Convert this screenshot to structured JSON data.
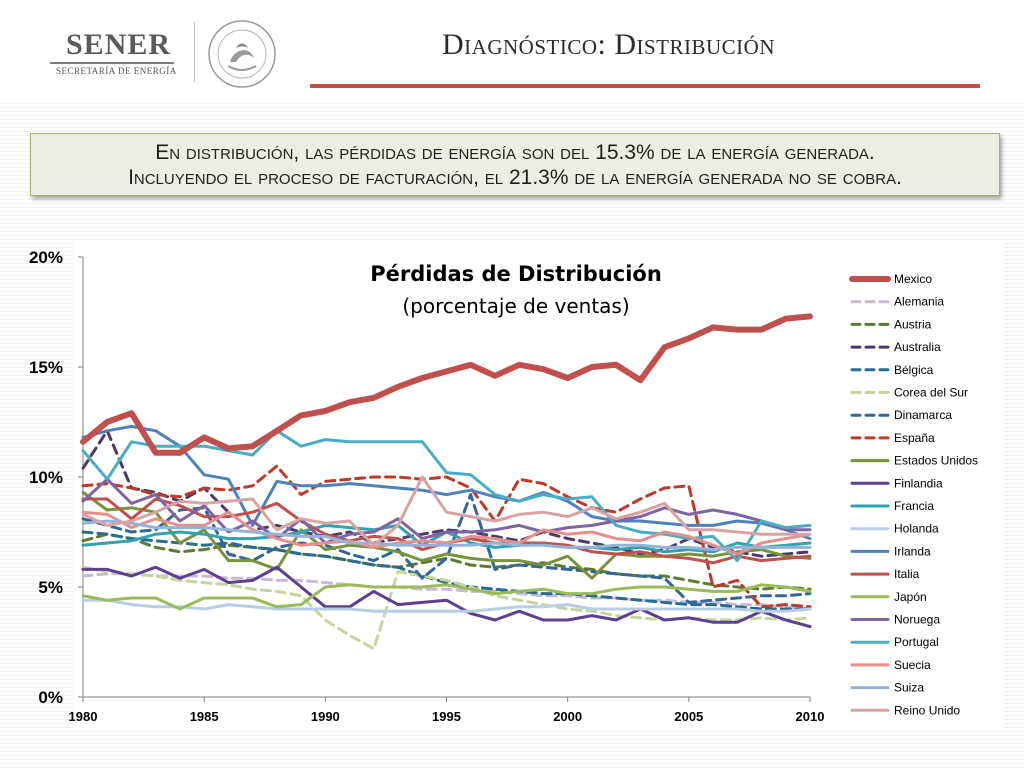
{
  "header": {
    "logo_name": "SENER",
    "logo_sub": "SECRETARÍA DE ENERGÍA",
    "title": "Diagnóstico: Distribución"
  },
  "callout": {
    "line1": "En distribución, las pérdidas de energía son del 15.3% de la energía generada.",
    "line2": "Incluyendo el proceso de facturación, el 21.3% de la energía generada no se cobra."
  },
  "colors": {
    "accent_rule": "#c94848",
    "callout_border": "#9fb66f",
    "callout_bg": "#eeede3"
  },
  "chart_data": {
    "type": "line",
    "title": "Pérdidas de Distribución",
    "subtitle": "(porcentaje de ventas)",
    "xlabel": "",
    "ylabel": "",
    "xlim": [
      1980,
      2010
    ],
    "ylim": [
      0,
      20
    ],
    "yticks": [
      "0%",
      "5%",
      "10%",
      "15%",
      "20%"
    ],
    "xticks": [
      "1980",
      "1985",
      "1990",
      "1995",
      "2000",
      "2005",
      "2010"
    ],
    "legend_position": "right",
    "grid": false,
    "x": [
      1980,
      1981,
      1982,
      1983,
      1984,
      1985,
      1986,
      1987,
      1988,
      1989,
      1990,
      1991,
      1992,
      1993,
      1994,
      1995,
      1996,
      1997,
      1998,
      1999,
      2000,
      2001,
      2002,
      2003,
      2004,
      2005,
      2006,
      2007,
      2008,
      2009,
      2010
    ],
    "series": [
      {
        "name": "Mexico",
        "color": "#c0504d",
        "dash": "solid",
        "width": 5,
        "values": [
          11.6,
          12.5,
          12.9,
          11.1,
          11.1,
          11.8,
          11.3,
          11.4,
          12.1,
          12.8,
          13.0,
          13.4,
          13.6,
          14.1,
          14.5,
          14.8,
          15.1,
          14.6,
          15.1,
          14.9,
          14.5,
          15.0,
          15.1,
          14.4,
          15.9,
          16.3,
          16.8,
          16.7,
          16.7,
          17.2,
          17.3
        ]
      },
      {
        "name": "Alemania",
        "color": "#c9b8d9",
        "dash": "dash",
        "width": 2,
        "values": [
          5.5,
          5.6,
          5.6,
          5.5,
          5.5,
          5.5,
          5.4,
          5.4,
          5.3,
          5.3,
          5.2,
          5.1,
          5.0,
          5.0,
          4.9,
          4.9,
          4.8,
          4.8,
          4.7,
          4.6,
          4.6,
          4.5,
          4.5,
          4.4,
          4.4,
          4.3,
          4.3,
          4.2,
          4.2,
          4.1,
          4.0
        ]
      },
      {
        "name": "Austria",
        "color": "#5b7b34",
        "dash": "dash",
        "width": 2,
        "values": [
          7.1,
          7.4,
          7.2,
          6.8,
          6.6,
          6.7,
          6.9,
          6.8,
          6.7,
          6.5,
          6.4,
          6.2,
          6.0,
          5.9,
          6.1,
          6.3,
          6.0,
          5.9,
          6.0,
          6.1,
          5.9,
          5.8,
          5.6,
          5.5,
          5.5,
          5.3,
          5.1,
          5.0,
          4.9,
          5.0,
          4.9
        ]
      },
      {
        "name": "Australia",
        "color": "#4b3a6b",
        "dash": "dash",
        "width": 2,
        "values": [
          10.4,
          12.1,
          9.5,
          9.3,
          8.9,
          9.5,
          8.4,
          7.6,
          7.8,
          7.5,
          7.3,
          7.5,
          7.0,
          7.2,
          7.4,
          7.6,
          7.5,
          7.3,
          7.1,
          7.5,
          7.2,
          7.0,
          6.8,
          6.5,
          6.7,
          7.2,
          6.8,
          6.6,
          6.4,
          6.5,
          6.6
        ]
      },
      {
        "name": "Bélgica",
        "color": "#2a6c8c",
        "dash": "dash",
        "width": 2,
        "values": [
          7.5,
          7.4,
          7.2,
          7.1,
          7.0,
          6.9,
          7.0,
          6.8,
          6.7,
          6.5,
          6.4,
          6.2,
          6.0,
          5.9,
          5.5,
          5.2,
          5.0,
          4.9,
          4.8,
          4.7,
          4.7,
          4.6,
          4.5,
          4.4,
          4.3,
          4.2,
          4.2,
          4.1,
          4.0,
          4.0,
          4.0
        ]
      },
      {
        "name": "Corea del Sur",
        "color": "#c3d69b",
        "dash": "dash",
        "width": 2,
        "values": [
          5.9,
          5.7,
          5.6,
          5.5,
          5.3,
          5.2,
          5.1,
          4.9,
          4.8,
          4.6,
          3.5,
          2.8,
          2.2,
          5.7,
          5.5,
          5.3,
          5.0,
          4.6,
          4.4,
          4.2,
          4.0,
          3.9,
          3.7,
          3.6,
          3.5,
          3.6,
          3.5,
          3.5,
          3.6,
          3.5,
          3.6
        ]
      },
      {
        "name": "Dinamarca",
        "color": "#336699",
        "dash": "dash",
        "width": 2,
        "values": [
          8.1,
          7.8,
          7.5,
          7.6,
          8.5,
          8.6,
          6.5,
          6.2,
          6.8,
          7.0,
          6.9,
          6.5,
          6.2,
          6.7,
          5.4,
          6.3,
          9.2,
          5.8,
          6.0,
          5.9,
          5.8,
          5.7,
          5.6,
          5.5,
          5.4,
          4.3,
          4.4,
          4.5,
          4.6,
          4.6,
          4.7
        ]
      },
      {
        "name": "España",
        "color": "#c0392b",
        "dash": "dash",
        "width": 2,
        "values": [
          9.6,
          9.7,
          9.5,
          9.2,
          9.1,
          9.5,
          9.4,
          9.6,
          10.5,
          9.2,
          9.8,
          9.9,
          10.0,
          10.0,
          9.9,
          10.0,
          9.5,
          8.0,
          9.9,
          9.7,
          9.1,
          8.6,
          8.4,
          9.0,
          9.5,
          9.6,
          5.0,
          5.3,
          4.1,
          4.2,
          4.1
        ]
      },
      {
        "name": "Estados Unidos",
        "color": "#77933c",
        "dash": "solid",
        "width": 2,
        "values": [
          9.3,
          8.5,
          8.6,
          8.4,
          7.0,
          7.6,
          6.2,
          6.2,
          5.8,
          7.6,
          6.7,
          6.9,
          6.8,
          6.6,
          6.2,
          6.5,
          6.3,
          6.2,
          6.2,
          6.0,
          6.4,
          5.4,
          6.5,
          6.4,
          6.4,
          6.5,
          6.4,
          6.6,
          6.7,
          6.4,
          6.3
        ]
      },
      {
        "name": "Finlandia",
        "color": "#5f3f8f",
        "dash": "solid",
        "width": 2,
        "values": [
          5.8,
          5.8,
          5.5,
          5.9,
          5.4,
          5.8,
          5.2,
          5.3,
          5.9,
          5.0,
          4.1,
          4.1,
          4.8,
          4.2,
          4.3,
          4.4,
          3.8,
          3.5,
          3.9,
          3.5,
          3.5,
          3.7,
          3.5,
          4.0,
          3.5,
          3.6,
          3.4,
          3.4,
          3.9,
          3.5,
          3.2
        ]
      },
      {
        "name": "Francia",
        "color": "#31a3b0",
        "dash": "solid",
        "width": 2,
        "values": [
          6.9,
          7.0,
          7.1,
          7.4,
          7.5,
          7.4,
          7.2,
          7.2,
          7.3,
          7.5,
          7.8,
          7.7,
          7.6,
          7.8,
          6.9,
          7.5,
          7.0,
          6.8,
          6.9,
          7.0,
          6.8,
          6.8,
          6.7,
          6.8,
          6.6,
          6.7,
          6.6,
          7.0,
          6.8,
          6.9,
          7.0
        ]
      },
      {
        "name": "Holanda",
        "color": "#b9cde5",
        "dash": "solid",
        "width": 2,
        "values": [
          4.4,
          4.4,
          4.2,
          4.1,
          4.1,
          4.0,
          4.2,
          4.1,
          4.0,
          4.0,
          4.0,
          4.0,
          3.9,
          3.9,
          3.9,
          3.9,
          3.9,
          4.0,
          4.1,
          4.1,
          4.2,
          4.0,
          4.0,
          4.0,
          4.0,
          4.0,
          4.0,
          4.0,
          3.9,
          3.9,
          4.0
        ]
      },
      {
        "name": "Irlanda",
        "color": "#4f81bd",
        "dash": "solid",
        "width": 2,
        "values": [
          11.8,
          12.1,
          12.3,
          12.1,
          11.4,
          10.1,
          9.9,
          7.8,
          9.8,
          9.6,
          9.6,
          9.7,
          9.6,
          9.5,
          9.4,
          9.2,
          9.4,
          9.1,
          8.9,
          9.3,
          8.9,
          8.2,
          8.0,
          8.0,
          7.9,
          7.8,
          7.8,
          8.0,
          7.9,
          7.6,
          7.2
        ]
      },
      {
        "name": "Italia",
        "color": "#c0504d",
        "dash": "solid",
        "width": 2,
        "values": [
          9.0,
          9.0,
          8.1,
          9.0,
          8.7,
          8.2,
          8.2,
          8.4,
          8.8,
          8.0,
          7.4,
          7.1,
          7.3,
          7.2,
          6.7,
          7.0,
          7.2,
          7.0,
          7.0,
          7.0,
          6.9,
          6.6,
          6.5,
          6.6,
          6.4,
          6.3,
          6.1,
          6.4,
          6.2,
          6.3,
          6.4
        ]
      },
      {
        "name": "Japón",
        "color": "#9bbb59",
        "dash": "solid",
        "width": 2,
        "values": [
          4.6,
          4.4,
          4.5,
          4.5,
          4.0,
          4.5,
          4.5,
          4.5,
          4.1,
          4.2,
          5.0,
          5.1,
          5.0,
          5.0,
          5.0,
          5.1,
          4.9,
          4.7,
          4.8,
          4.9,
          4.7,
          4.7,
          4.9,
          5.0,
          5.0,
          4.9,
          4.8,
          4.8,
          5.1,
          5.0,
          4.8
        ]
      },
      {
        "name": "Noruega",
        "color": "#8064a2",
        "dash": "solid",
        "width": 2,
        "values": [
          8.9,
          9.9,
          8.8,
          9.2,
          8.0,
          8.7,
          7.5,
          8.0,
          7.2,
          8.1,
          7.0,
          7.4,
          7.5,
          8.1,
          7.2,
          7.5,
          7.5,
          7.6,
          7.8,
          7.5,
          7.7,
          7.8,
          8.0,
          8.2,
          8.6,
          8.3,
          8.5,
          8.3,
          8.0,
          7.6,
          7.6
        ]
      },
      {
        "name": "Portugal",
        "color": "#4bacc6",
        "dash": "solid",
        "width": 2,
        "values": [
          11.2,
          9.9,
          11.6,
          11.4,
          11.4,
          11.4,
          11.2,
          11.0,
          12.1,
          11.4,
          11.7,
          11.6,
          11.6,
          11.6,
          11.6,
          10.2,
          10.1,
          9.2,
          8.9,
          9.2,
          9.0,
          9.1,
          7.8,
          7.5,
          7.4,
          7.2,
          7.3,
          6.2,
          8.0,
          7.7,
          7.8
        ]
      },
      {
        "name": "Suecia",
        "color": "#e6908d",
        "dash": "solid",
        "width": 2,
        "values": [
          8.4,
          8.3,
          7.7,
          8.1,
          7.8,
          7.8,
          8.4,
          7.6,
          7.2,
          6.9,
          7.0,
          7.1,
          6.8,
          7.0,
          7.1,
          7.0,
          7.3,
          7.2,
          7.0,
          7.6,
          7.4,
          7.5,
          7.2,
          7.1,
          7.5,
          7.3,
          6.9,
          6.5,
          7.0,
          7.2,
          7.4
        ]
      },
      {
        "name": "Suiza",
        "color": "#95b3d7",
        "dash": "solid",
        "width": 2,
        "values": [
          7.9,
          8.0,
          7.9,
          7.7,
          7.7,
          7.7,
          7.6,
          7.5,
          7.4,
          7.3,
          7.3,
          7.0,
          7.0,
          6.9,
          6.9,
          6.9,
          6.9,
          7.0,
          6.9,
          6.9,
          6.8,
          6.8,
          6.9,
          6.9,
          6.8,
          6.8,
          6.7,
          6.8,
          6.8,
          6.8,
          6.8
        ]
      },
      {
        "name": "Reino Unido",
        "color": "#d9a3a3",
        "dash": "solid",
        "width": 2,
        "values": [
          8.3,
          7.8,
          8.0,
          8.4,
          8.9,
          8.8,
          8.9,
          9.0,
          7.6,
          8.1,
          7.9,
          8.0,
          6.9,
          7.8,
          10.0,
          8.4,
          8.2,
          8.0,
          8.3,
          8.4,
          8.2,
          8.6,
          8.1,
          8.4,
          8.8,
          7.6,
          7.6,
          7.5,
          7.4,
          7.4,
          7.4
        ]
      }
    ]
  }
}
